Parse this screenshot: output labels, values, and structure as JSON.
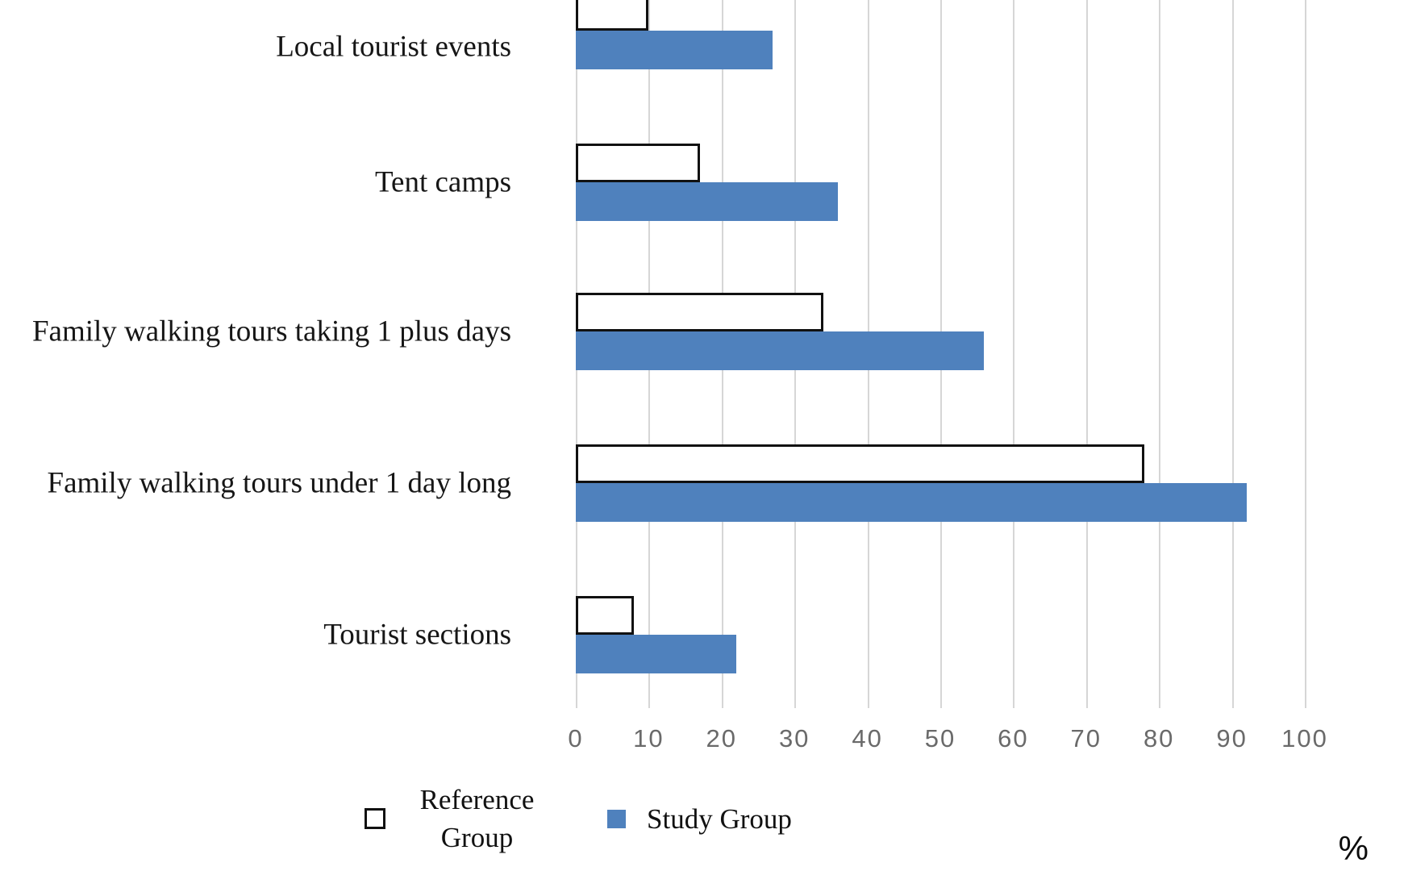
{
  "chart_data": {
    "type": "bar",
    "orientation": "horizontal",
    "title": "",
    "xlabel": "%",
    "ylabel": "",
    "xlim": [
      0,
      100
    ],
    "x_ticks": [
      0,
      10,
      20,
      30,
      40,
      50,
      60,
      70,
      80,
      90,
      100
    ],
    "grid": true,
    "legend_position": "bottom",
    "categories": [
      "Local tourist events",
      "Tent camps",
      "Family walking tours taking 1 plus days",
      "Family walking tours under 1 day long",
      "Tourist sections"
    ],
    "series": [
      {
        "name": "Reference Group",
        "values": [
          10,
          17,
          34,
          78,
          8
        ],
        "fill": "#ffffff",
        "border": "#111111"
      },
      {
        "name": "Study Group",
        "values": [
          27,
          36,
          56,
          92,
          22
        ],
        "fill": "#4f81bd",
        "border": "#4f81bd"
      }
    ]
  },
  "colors": {
    "study_blue": "#4f81bd",
    "reference_white": "#ffffff",
    "outline_black": "#111111",
    "gridline_gray": "#d6d6d6",
    "tick_gray": "#6a6a6a"
  }
}
